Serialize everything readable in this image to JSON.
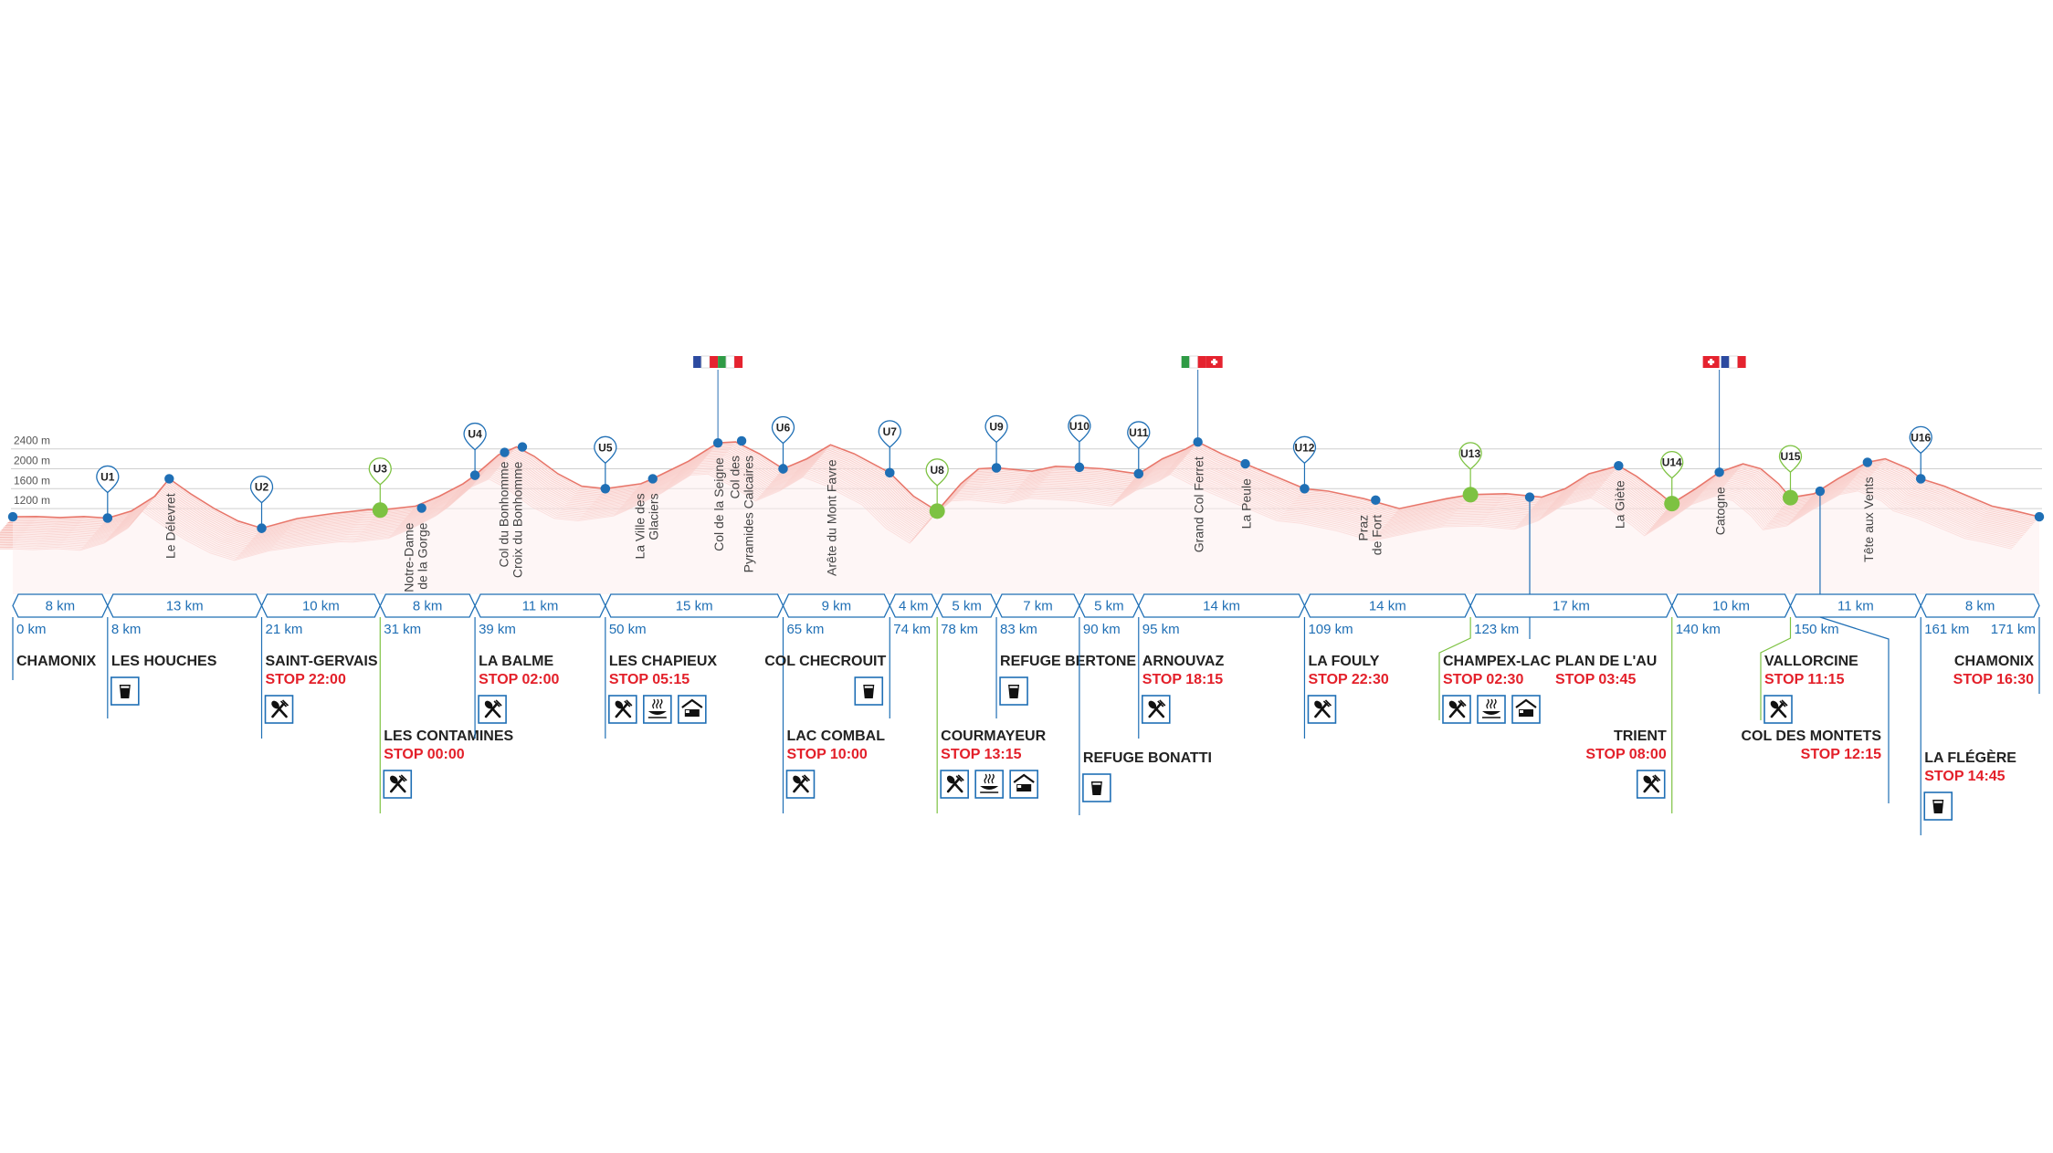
{
  "chart_data": {
    "type": "area",
    "title": "",
    "xlabel": "",
    "ylabel": "",
    "ylim": [
      700,
      3000
    ],
    "xlim": [
      0,
      171
    ],
    "y_ticks": [
      "1200 m",
      "1600 m",
      "2000 m",
      "2400 m"
    ],
    "y_tick_values": [
      1200,
      1600,
      2000,
      2400
    ],
    "profile": [
      [
        0,
        1035
      ],
      [
        2,
        1040
      ],
      [
        4,
        1020
      ],
      [
        6,
        1040
      ],
      [
        8,
        1010
      ],
      [
        10,
        1150
      ],
      [
        12,
        1450
      ],
      [
        13.2,
        1800
      ],
      [
        15,
        1500
      ],
      [
        17,
        1200
      ],
      [
        19,
        950
      ],
      [
        21,
        805
      ],
      [
        24,
        1000
      ],
      [
        27,
        1100
      ],
      [
        30,
        1180
      ],
      [
        31,
        1170
      ],
      [
        34,
        1250
      ],
      [
        36,
        1450
      ],
      [
        38,
        1700
      ],
      [
        39,
        1870
      ],
      [
        41,
        2280
      ],
      [
        42.5,
        2440
      ],
      [
        44,
        2250
      ],
      [
        46,
        1900
      ],
      [
        48,
        1650
      ],
      [
        50,
        1600
      ],
      [
        53,
        1700
      ],
      [
        54,
        1800
      ],
      [
        57,
        2150
      ],
      [
        59.5,
        2520
      ],
      [
        61,
        2540
      ],
      [
        63,
        2300
      ],
      [
        65,
        2000
      ],
      [
        67,
        2200
      ],
      [
        69,
        2480
      ],
      [
        71,
        2300
      ],
      [
        74,
        1920
      ],
      [
        76,
        1450
      ],
      [
        78,
        1150
      ],
      [
        80,
        1700
      ],
      [
        81.5,
        2000
      ],
      [
        83,
        2020
      ],
      [
        86,
        1950
      ],
      [
        88,
        2050
      ],
      [
        90,
        2030
      ],
      [
        92,
        2000
      ],
      [
        94,
        1930
      ],
      [
        95,
        1900
      ],
      [
        97,
        2200
      ],
      [
        99,
        2400
      ],
      [
        100,
        2537
      ],
      [
        102,
        2300
      ],
      [
        104,
        2100
      ],
      [
        106,
        1900
      ],
      [
        108,
        1700
      ],
      [
        109,
        1600
      ],
      [
        111,
        1550
      ],
      [
        114,
        1400
      ],
      [
        117,
        1200
      ],
      [
        119,
        1300
      ],
      [
        121,
        1400
      ],
      [
        123,
        1480
      ],
      [
        126,
        1500
      ],
      [
        129,
        1430
      ],
      [
        131,
        1600
      ],
      [
        133,
        1900
      ],
      [
        135.5,
        2060
      ],
      [
        137,
        1850
      ],
      [
        139,
        1500
      ],
      [
        140,
        1300
      ],
      [
        142,
        1600
      ],
      [
        144,
        1930
      ],
      [
        146,
        2100
      ],
      [
        147.5,
        2000
      ],
      [
        149,
        1700
      ],
      [
        150,
        1420
      ],
      [
        152,
        1500
      ],
      [
        154,
        1800
      ],
      [
        156.5,
        2130
      ],
      [
        158,
        2200
      ],
      [
        160,
        2000
      ],
      [
        161,
        1800
      ],
      [
        163,
        1650
      ],
      [
        165,
        1450
      ],
      [
        167,
        1250
      ],
      [
        169,
        1150
      ],
      [
        171,
        1035
      ]
    ],
    "waypoints": [
      {
        "km": 0,
        "elev": 1035
      },
      {
        "km": 8,
        "elev": 1010
      },
      {
        "km": 13.2,
        "elev": 1800
      },
      {
        "km": 21,
        "elev": 805
      },
      {
        "km": 31,
        "elev": 1170
      },
      {
        "km": 34.5,
        "elev": 1210
      },
      {
        "km": 39,
        "elev": 1870
      },
      {
        "km": 41.5,
        "elev": 2330
      },
      {
        "km": 43,
        "elev": 2440
      },
      {
        "km": 50,
        "elev": 1600
      },
      {
        "km": 54,
        "elev": 1800
      },
      {
        "km": 59.5,
        "elev": 2520
      },
      {
        "km": 61.5,
        "elev": 2560
      },
      {
        "km": 65,
        "elev": 2000
      },
      {
        "km": 74,
        "elev": 1920
      },
      {
        "km": 78,
        "elev": 1150
      },
      {
        "km": 83,
        "elev": 2020
      },
      {
        "km": 90,
        "elev": 2030
      },
      {
        "km": 95,
        "elev": 1900
      },
      {
        "km": 100,
        "elev": 2537
      },
      {
        "km": 104,
        "elev": 2100
      },
      {
        "km": 109,
        "elev": 1600
      },
      {
        "km": 115,
        "elev": 1370
      },
      {
        "km": 123,
        "elev": 1480
      },
      {
        "km": 128,
        "elev": 1430
      },
      {
        "km": 135.5,
        "elev": 2060
      },
      {
        "km": 140,
        "elev": 1300
      },
      {
        "km": 144,
        "elev": 1930
      },
      {
        "km": 150,
        "elev": 1420
      },
      {
        "km": 152.5,
        "elev": 1550
      },
      {
        "km": 156.5,
        "elev": 2130
      },
      {
        "km": 161,
        "elev": 1800
      },
      {
        "km": 171,
        "elev": 1035
      }
    ],
    "summits": [
      {
        "km": 13.2,
        "elev": 1800,
        "name": "Le Délevret"
      },
      {
        "km": 34.5,
        "elev": 1210,
        "name": "Notre-Dame\nde la Gorge"
      },
      {
        "km": 42.5,
        "elev": 2440,
        "name": "Col du Bonhomme\nCroix du Bonhomme"
      },
      {
        "km": 54,
        "elev": 1800,
        "name": "La Ville des\nGlaciers"
      },
      {
        "km": 59.5,
        "elev": 2520,
        "name": "Col de la Seigne"
      },
      {
        "km": 62,
        "elev": 2560,
        "name": "Col des\nPyramides Calcaires"
      },
      {
        "km": 69,
        "elev": 2480,
        "name": "Arête du Mont Favre"
      },
      {
        "km": 100,
        "elev": 2537,
        "name": "Grand Col Ferret"
      },
      {
        "km": 104,
        "elev": 2100,
        "name": "La Peule"
      },
      {
        "km": 115,
        "elev": 1370,
        "name": "Praz\nde Fort"
      },
      {
        "km": 135.5,
        "elev": 2060,
        "name": "La Giète"
      },
      {
        "km": 144,
        "elev": 1930,
        "name": "Catogne"
      },
      {
        "km": 156.5,
        "elev": 2130,
        "name": "Tête aux Vents"
      }
    ],
    "flags": [
      {
        "km": 59.5,
        "colors": [
          "#2c4aa0",
          "#ffffff",
          "#e5232f",
          "#2f9b45",
          "#ffffff",
          "#e5232f"
        ]
      },
      {
        "km": 100,
        "colors": [
          "#2f9b45",
          "#ffffff",
          "#e5232f",
          "SWISS"
        ]
      },
      {
        "km": 144,
        "colors": [
          "SWISS",
          "#2c4aa0",
          "#ffffff",
          "#e5232f"
        ]
      }
    ],
    "segments": [
      "8 km",
      "13 km",
      "10 km",
      "8 km",
      "11 km",
      "15 km",
      "9 km",
      "4 km",
      "5 km",
      "7 km",
      "5 km",
      "14 km",
      "14 km",
      "17 km",
      "10 km",
      "11 km",
      "8 km"
    ],
    "segment_bounds": [
      0,
      8,
      21,
      31,
      39,
      50,
      65,
      74,
      78,
      83,
      90,
      95,
      109,
      123,
      140,
      150,
      161,
      171
    ],
    "cutoffs": [
      {
        "id": "U1",
        "km": 8,
        "elev": 1010,
        "green": false
      },
      {
        "id": "U2",
        "km": 21,
        "elev": 805,
        "green": false
      },
      {
        "id": "U3",
        "km": 31,
        "elev": 1170,
        "green": true
      },
      {
        "id": "U4",
        "km": 39,
        "elev": 1870,
        "green": false
      },
      {
        "id": "U5",
        "km": 50,
        "elev": 1600,
        "green": false
      },
      {
        "id": "U6",
        "km": 65,
        "elev": 2000,
        "green": false
      },
      {
        "id": "U7",
        "km": 74,
        "elev": 1920,
        "green": false
      },
      {
        "id": "U8",
        "km": 78,
        "elev": 1150,
        "green": true
      },
      {
        "id": "U9",
        "km": 83,
        "elev": 2020,
        "green": false
      },
      {
        "id": "U10",
        "km": 90,
        "elev": 2030,
        "green": false
      },
      {
        "id": "U11",
        "km": 95,
        "elev": 1900,
        "green": false
      },
      {
        "id": "U12",
        "km": 109,
        "elev": 1600,
        "green": false
      },
      {
        "id": "U13",
        "km": 123,
        "elev": 1480,
        "green": true
      },
      {
        "id": "U14",
        "km": 140,
        "elev": 1300,
        "green": true
      },
      {
        "id": "U15",
        "km": 150,
        "elev": 1420,
        "green": true
      },
      {
        "id": "U16",
        "km": 161,
        "elev": 1800,
        "green": false
      }
    ],
    "stations": [
      {
        "km": 0,
        "dist": "0 km",
        "name": "CHAMONIX",
        "stop": "",
        "icons": [],
        "row": 0,
        "align": "left",
        "green": false
      },
      {
        "km": 8,
        "dist": "8 km",
        "name": "LES HOUCHES",
        "stop": "",
        "icons": [
          "drink"
        ],
        "row": 0,
        "align": "left",
        "green": false
      },
      {
        "km": 21,
        "dist": "21 km",
        "name": "SAINT-GERVAIS",
        "stop": "STOP 22:00",
        "icons": [
          "food"
        ],
        "row": 0,
        "align": "left",
        "green": false
      },
      {
        "km": 31,
        "dist": "31 km",
        "name": "LES CONTAMINES",
        "stop": "STOP 00:00",
        "icons": [
          "food"
        ],
        "row": 1,
        "align": "left",
        "green": true
      },
      {
        "km": 39,
        "dist": "39 km",
        "name": "LA BALME",
        "stop": "STOP 02:00",
        "icons": [
          "food"
        ],
        "row": 0,
        "align": "left",
        "green": false
      },
      {
        "km": 50,
        "dist": "50 km",
        "name": "LES CHAPIEUX",
        "stop": "STOP 05:15",
        "icons": [
          "food",
          "hot",
          "bed"
        ],
        "row": 0,
        "align": "left",
        "green": false
      },
      {
        "km": 65,
        "dist": "65 km",
        "name": "LAC COMBAL",
        "stop": "STOP 10:00",
        "icons": [
          "food"
        ],
        "row": 1,
        "align": "left",
        "green": false
      },
      {
        "km": 74,
        "dist": "74 km",
        "name": "COL CHECROUIT",
        "stop": "",
        "icons": [
          "drink"
        ],
        "row": 0,
        "align": "right",
        "green": false
      },
      {
        "km": 78,
        "dist": "78 km",
        "name": "COURMAYEUR",
        "stop": "STOP 13:15",
        "icons": [
          "food",
          "hot",
          "bed"
        ],
        "row": 1,
        "align": "left",
        "green": true
      },
      {
        "km": 83,
        "dist": "83 km",
        "name": "REFUGE BERTONE",
        "stop": "",
        "icons": [
          "drink"
        ],
        "row": 0,
        "align": "left",
        "green": false
      },
      {
        "km": 90,
        "dist": "90 km",
        "name": "REFUGE BONATTI",
        "stop": "",
        "icons": [
          "drink"
        ],
        "row": 2,
        "align": "left",
        "green": false
      },
      {
        "km": 95,
        "dist": "95 km",
        "name": "ARNOUVAZ",
        "stop": "STOP 18:15",
        "icons": [
          "food"
        ],
        "row": 0,
        "align": "left",
        "green": false
      },
      {
        "km": 109,
        "dist": "109 km",
        "name": "LA FOULY",
        "stop": "STOP 22:30",
        "icons": [
          "food"
        ],
        "row": 0,
        "align": "left",
        "green": false
      },
      {
        "km": 123,
        "dist": "123 km",
        "name": "CHAMPEX-LAC",
        "stop": "STOP 02:30",
        "icons": [
          "food",
          "hot",
          "bed"
        ],
        "row": 0,
        "align": "tail",
        "green": true
      },
      {
        "km": 128,
        "dist": "",
        "name": "PLAN DE L'AU",
        "stop": "STOP 03:45",
        "icons": [],
        "row": 0,
        "align": "left",
        "green": false
      },
      {
        "km": 140,
        "dist": "140 km",
        "name": "TRIENT",
        "stop": "STOP 08:00",
        "icons": [
          "food"
        ],
        "row": 1,
        "align": "right",
        "green": true
      },
      {
        "km": 150,
        "dist": "150 km",
        "name": "VALLORCINE",
        "stop": "STOP 11:15",
        "icons": [
          "food"
        ],
        "row": 0,
        "align": "tail",
        "green": true
      },
      {
        "km": 152.5,
        "dist": "",
        "name": "COL DES MONTETS",
        "stop": "STOP 12:15",
        "icons": [],
        "row": 1,
        "align": "right",
        "green": false
      },
      {
        "km": 161,
        "dist": "161 km",
        "name": "LA FLÉGÈRE",
        "stop": "STOP 14:45",
        "icons": [
          "drink"
        ],
        "row": 2,
        "align": "left",
        "green": false
      },
      {
        "km": 171,
        "dist": "171 km",
        "name": "CHAMONIX",
        "stop": "STOP 16:30",
        "icons": [],
        "row": 0,
        "align": "right",
        "green": false
      }
    ],
    "colors": {
      "profile": "#f2a39a",
      "line": "#1f6fb5",
      "green": "#7dc242",
      "stop": "#e3202a",
      "text": "#222222",
      "grid": "#cfcfcf"
    }
  }
}
